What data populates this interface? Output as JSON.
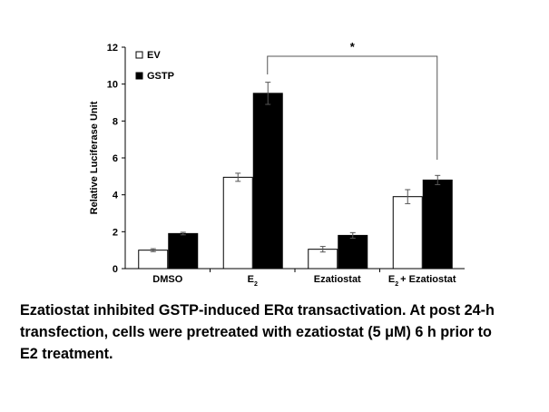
{
  "chart_data": {
    "type": "bar",
    "title": "",
    "xlabel": "",
    "ylabel": "Relative Luciferase Unit",
    "ylim": [
      0,
      12
    ],
    "yticks": [
      "0",
      "2",
      "4",
      "6",
      "8",
      "10",
      "12"
    ],
    "categories": [
      {
        "main": "DMSO",
        "sub": "",
        "rest": ""
      },
      {
        "main": "E",
        "sub": "2",
        "rest": ""
      },
      {
        "main": "Ezatiostat",
        "sub": "",
        "rest": ""
      },
      {
        "main": "E",
        "sub": "2",
        "rest": "+ Ezatiostat"
      }
    ],
    "series": [
      {
        "name": "EV",
        "color": "#ffffff",
        "values": [
          1.0,
          4.95,
          1.05,
          3.9
        ],
        "errors": [
          0.08,
          0.22,
          0.15,
          0.38
        ]
      },
      {
        "name": "GSTP",
        "color": "#000000",
        "values": [
          1.9,
          9.5,
          1.8,
          4.8
        ],
        "errors": [
          0.07,
          0.6,
          0.15,
          0.25
        ]
      }
    ],
    "legend_position": "top-left",
    "annotations": [
      {
        "text": "*",
        "from_category": 1,
        "to_category": 3
      }
    ],
    "grid": false
  },
  "caption": {
    "line1": "Ezatiostat inhibited GSTP-induced ERα transactivation. At post 24-h",
    "line2": "transfection, cells were pretreated with ezatiostat (5 μM) 6 h prior to",
    "line3": "E2 treatment."
  }
}
